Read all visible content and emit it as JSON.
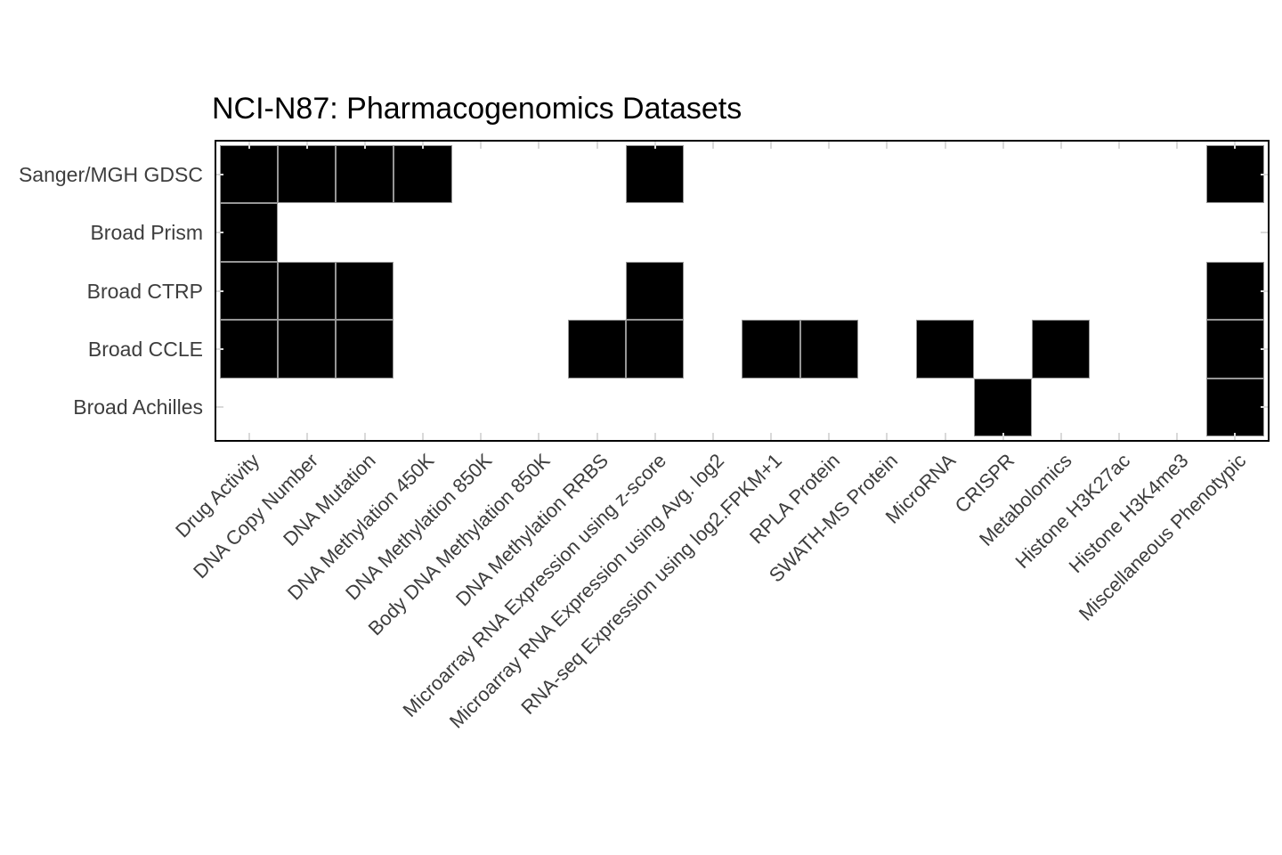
{
  "title": "NCI-N87: Pharmacogenomics Datasets",
  "colors": {
    "cell_fill": "#000000",
    "cell_edge": "#969696",
    "plot_border": "#000000",
    "tick_mark": "#d9d9d9",
    "axis_label_text": "#3d3d3d",
    "title_text": "#000000",
    "background": "#ffffff"
  },
  "chart_data": {
    "type": "heatmap",
    "title": "NCI-N87: Pharmacogenomics Datasets",
    "xlabel": "",
    "ylabel": "",
    "grid": "off",
    "legend_position": "none",
    "rows": [
      "Sanger/MGH GDSC",
      "Broad Prism",
      "Broad CTRP",
      "Broad CCLE",
      "Broad Achilles"
    ],
    "columns": [
      "Drug Activity",
      "DNA Copy Number",
      "DNA Mutation",
      "DNA Methylation 450K",
      "DNA Methylation 850K",
      "Body DNA Methylation 850K",
      "DNA Methylation RRBS",
      "Microarray RNA Expression using z-score",
      "Microarray RNA Expression using Avg. log2",
      "RNA-seq Expression using log2.FPKM+1",
      "RPLA Protein",
      "SWATH-MS Protein",
      "MicroRNA",
      "CRISPR",
      "Metabolomics",
      "Histone H3K27ac",
      "Histone H3K4me3",
      "Miscellaneous Phenotypic"
    ],
    "matrix": [
      [
        1,
        1,
        1,
        1,
        0,
        0,
        0,
        1,
        0,
        0,
        0,
        0,
        0,
        0,
        0,
        0,
        0,
        1
      ],
      [
        1,
        0,
        0,
        0,
        0,
        0,
        0,
        0,
        0,
        0,
        0,
        0,
        0,
        0,
        0,
        0,
        0,
        0
      ],
      [
        1,
        1,
        1,
        0,
        0,
        0,
        0,
        1,
        0,
        0,
        0,
        0,
        0,
        0,
        0,
        0,
        0,
        1
      ],
      [
        1,
        1,
        1,
        0,
        0,
        0,
        1,
        1,
        0,
        1,
        1,
        0,
        1,
        0,
        1,
        0,
        0,
        1
      ],
      [
        0,
        0,
        0,
        0,
        0,
        0,
        0,
        0,
        0,
        0,
        0,
        0,
        0,
        1,
        0,
        0,
        0,
        1
      ]
    ],
    "value_encoding": "1 = filled black cell (dataset present), 0 = white cell (absent)"
  }
}
